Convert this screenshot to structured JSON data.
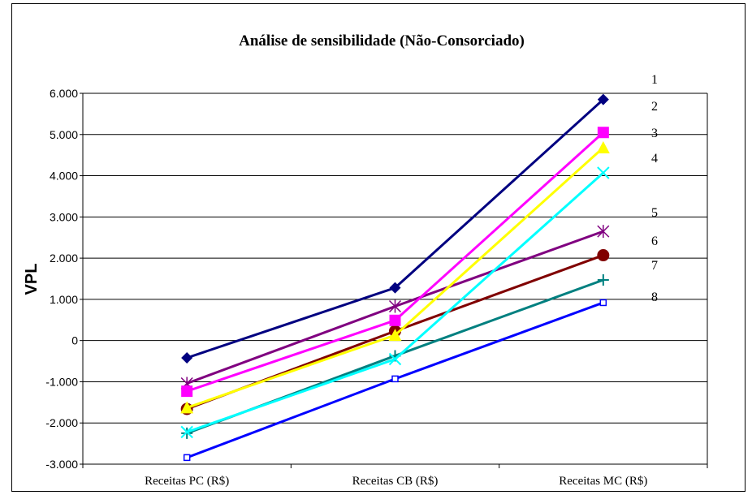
{
  "chart_data": {
    "type": "line",
    "title": "Análise de sensibilidade (Não-Consorciado)",
    "xlabel": "",
    "ylabel": "VPL",
    "ylim": [
      -3000,
      6000
    ],
    "ytick_values": [
      -3000,
      -2000,
      -1000,
      0,
      1000,
      2000,
      3000,
      4000,
      5000,
      6000
    ],
    "ytick_labels": [
      "-3.000",
      "-2.000",
      "-1.000",
      "0",
      "1.000",
      "2.000",
      "3.000",
      "4.000",
      "5.000",
      "6.000"
    ],
    "grid": true,
    "legend": "none",
    "categories": [
      "Receitas PC (R$)",
      "Receitas CB (R$)",
      "Receitas MC (R$)"
    ],
    "series": [
      {
        "name": "1",
        "color": "#000080",
        "marker": "diamond",
        "values": [
          -420,
          1280,
          5850
        ]
      },
      {
        "name": "2",
        "color": "#ff00ff",
        "marker": "square",
        "values": [
          -1230,
          490,
          5050
        ]
      },
      {
        "name": "3",
        "color": "#ffff00",
        "marker": "triangle",
        "values": [
          -1630,
          130,
          4680
        ]
      },
      {
        "name": "4",
        "color": "#00ffff",
        "marker": "x",
        "values": [
          -2220,
          -450,
          4070
        ]
      },
      {
        "name": "5",
        "color": "#800080",
        "marker": "star",
        "values": [
          -1040,
          830,
          2650
        ]
      },
      {
        "name": "6",
        "color": "#800000",
        "marker": "circle",
        "values": [
          -1660,
          230,
          2070
        ]
      },
      {
        "name": "7",
        "color": "#008080",
        "marker": "plus",
        "values": [
          -2250,
          -370,
          1470
        ]
      },
      {
        "name": "8",
        "color": "#0000ff",
        "marker": "hollow-square",
        "values": [
          -2840,
          -930,
          920
        ]
      }
    ]
  }
}
